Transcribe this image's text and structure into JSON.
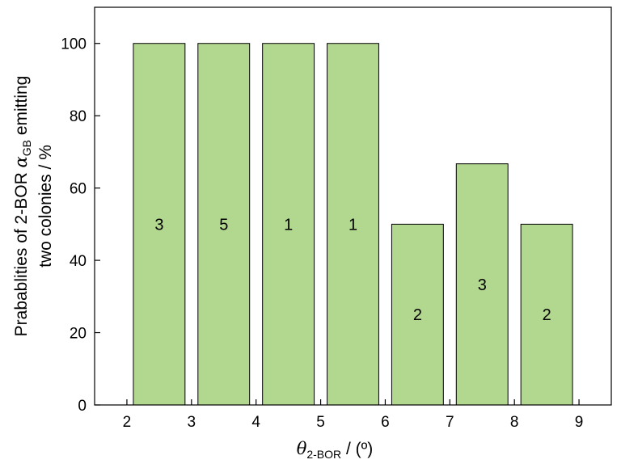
{
  "chart_data": {
    "type": "bar",
    "bars": [
      {
        "x_start": 2,
        "x_end": 3,
        "value": 100,
        "label": "3"
      },
      {
        "x_start": 3,
        "x_end": 4,
        "value": 100,
        "label": "5"
      },
      {
        "x_start": 4,
        "x_end": 5,
        "value": 100,
        "label": "1"
      },
      {
        "x_start": 5,
        "x_end": 6,
        "value": 100,
        "label": "1"
      },
      {
        "x_start": 6,
        "x_end": 7,
        "value": 50,
        "label": "2"
      },
      {
        "x_start": 7,
        "x_end": 8,
        "value": 66.7,
        "label": "3"
      },
      {
        "x_start": 8,
        "x_end": 9,
        "value": 50,
        "label": "2"
      }
    ],
    "xticks": [
      "2",
      "3",
      "4",
      "5",
      "6",
      "7",
      "8",
      "9"
    ],
    "yticks": [
      0,
      20,
      40,
      60,
      80,
      100
    ],
    "xlim": [
      1.5,
      9.5
    ],
    "ylim": [
      0,
      110
    ],
    "bar_color": "#b2d78f",
    "xlabel": {
      "main": "θ",
      "sub": "2-BOR",
      "rest": " / (º)"
    },
    "ylabel": {
      "line1_pre": "Prabablities of  2-BOR ",
      "line1_sym": "α",
      "line1_sub": "GB",
      "line1_post": " emitting",
      "line2": "two colonies / %"
    },
    "grid": false
  }
}
